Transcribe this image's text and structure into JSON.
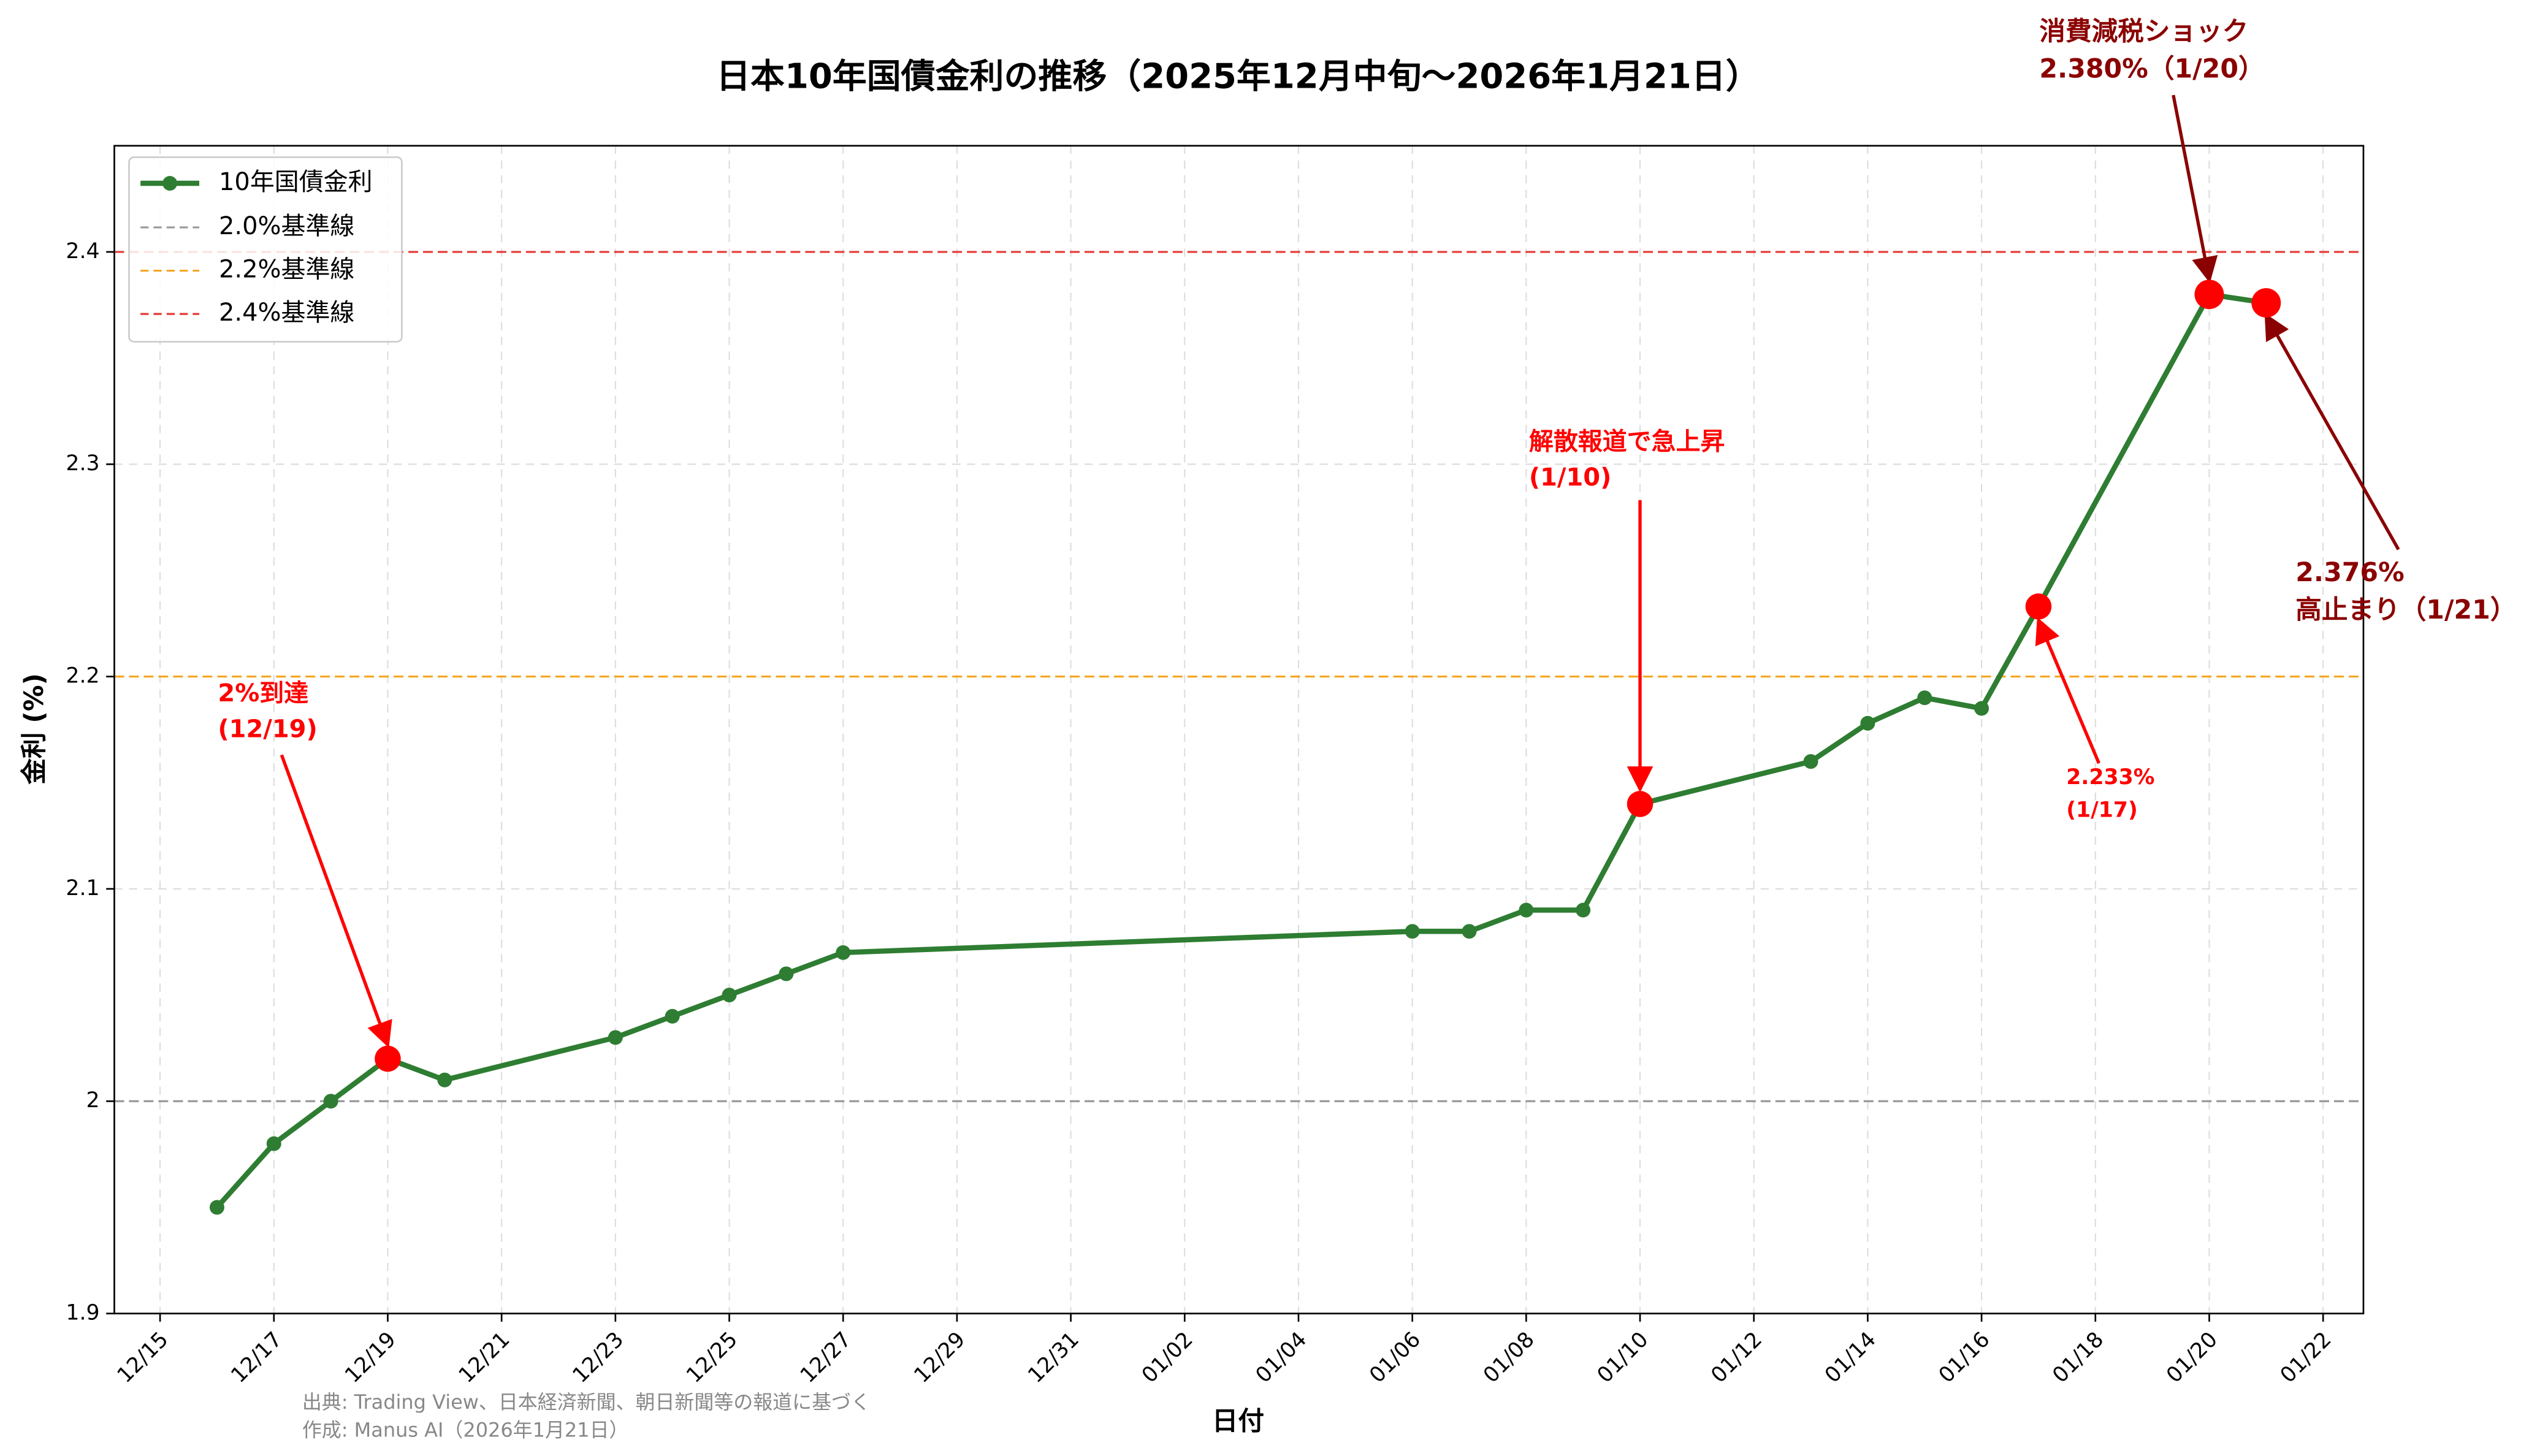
{
  "chart_data": {
    "type": "line",
    "title": "日本10年国債金利の推移（2025年12月中旬〜2026年1月21日）",
    "x_label": "日付",
    "y_label": "金利 (%)",
    "x": [
      "12/16",
      "12/17",
      "12/18",
      "12/19",
      "12/20",
      "12/23",
      "12/24",
      "12/25",
      "12/26",
      "12/27",
      "01/06",
      "01/07",
      "01/08",
      "01/09",
      "01/10",
      "01/13",
      "01/14",
      "01/15",
      "01/16",
      "01/17",
      "01/20",
      "01/21"
    ],
    "series": [
      {
        "name": "10年国債金利",
        "color": "#2e7d32",
        "values": [
          1.95,
          1.98,
          2.0,
          2.02,
          2.01,
          2.03,
          2.04,
          2.05,
          2.06,
          2.07,
          2.08,
          2.08,
          2.09,
          2.09,
          2.14,
          2.16,
          2.178,
          2.19,
          2.185,
          2.233,
          2.38,
          2.376
        ]
      }
    ],
    "reference_lines": [
      {
        "name": "2.0%基準線",
        "value": 2.0,
        "color": "#999999"
      },
      {
        "name": "2.2%基準線",
        "value": 2.2,
        "color": "#f5a623"
      },
      {
        "name": "2.4%基準線",
        "value": 2.4,
        "color": "#e53935"
      }
    ],
    "annotations": [
      {
        "lines": [
          "2%到達",
          "(12/19)"
        ],
        "point": 3,
        "color": "#ff0000"
      },
      {
        "lines": [
          "解散報道で急上昇",
          "(1/10)"
        ],
        "point": 14,
        "color": "#ff0000"
      },
      {
        "lines": [
          "2.233%",
          "(1/17)"
        ],
        "point": 19,
        "color": "#ff0000"
      },
      {
        "lines": [
          "消費減税ショック",
          "2.380%（1/20）"
        ],
        "point": 20,
        "color": "#8b0000"
      },
      {
        "lines": [
          "2.376%",
          "高止まり（1/21）"
        ],
        "point": 21,
        "color": "#8b0000"
      }
    ],
    "highlight_color": "#ff0000",
    "ylim": [
      1.9,
      2.45
    ],
    "yticks": [
      1.9,
      2.0,
      2.1,
      2.2,
      2.3,
      2.4
    ],
    "xticks": [
      "12/15",
      "12/17",
      "12/19",
      "12/21",
      "12/23",
      "12/25",
      "12/27",
      "12/29",
      "12/31",
      "01/02",
      "01/04",
      "01/06",
      "01/08",
      "01/10",
      "01/12",
      "01/14",
      "01/16",
      "01/18",
      "01/20",
      "01/22"
    ],
    "grid": true,
    "legend": "upper left",
    "footnotes": [
      "出典: Trading View、日本経済新聞、朝日新聞等の報道に基づく",
      "作成: Manus AI（2026年1月21日）"
    ]
  }
}
